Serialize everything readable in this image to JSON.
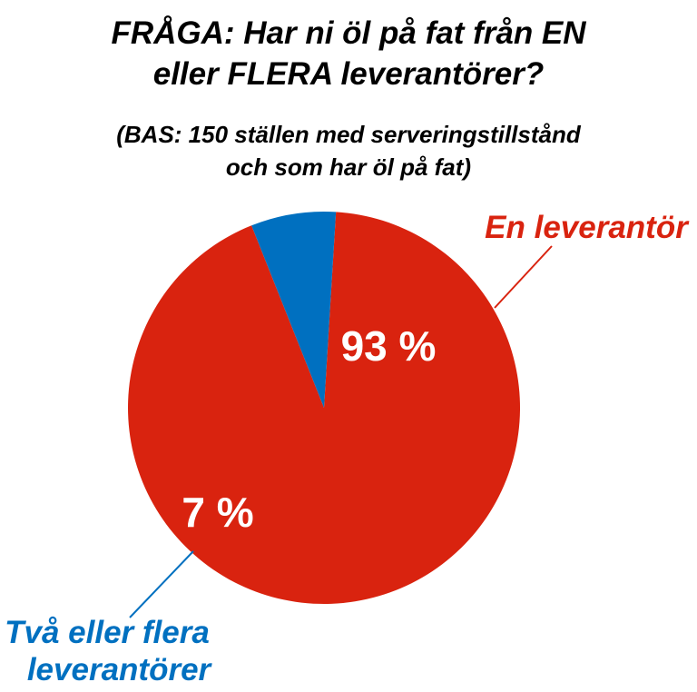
{
  "chart_data": {
    "type": "pie",
    "title_lines": [
      "FRÅGA: Har ni öl på fat från EN",
      "eller FLERA leverantörer?"
    ],
    "subtitle_lines": [
      "(BAS: 150 ställen med serveringstillstånd",
      "och som har öl på fat)"
    ],
    "slices": [
      {
        "label_lines": [
          "En leverantör"
        ],
        "value": 93,
        "value_label": "93 %",
        "color": "#d9230f"
      },
      {
        "label_lines": [
          "Två eller flera",
          "leverantörer"
        ],
        "value": 7,
        "value_label": "7 %",
        "color": "#0070c0"
      }
    ]
  }
}
